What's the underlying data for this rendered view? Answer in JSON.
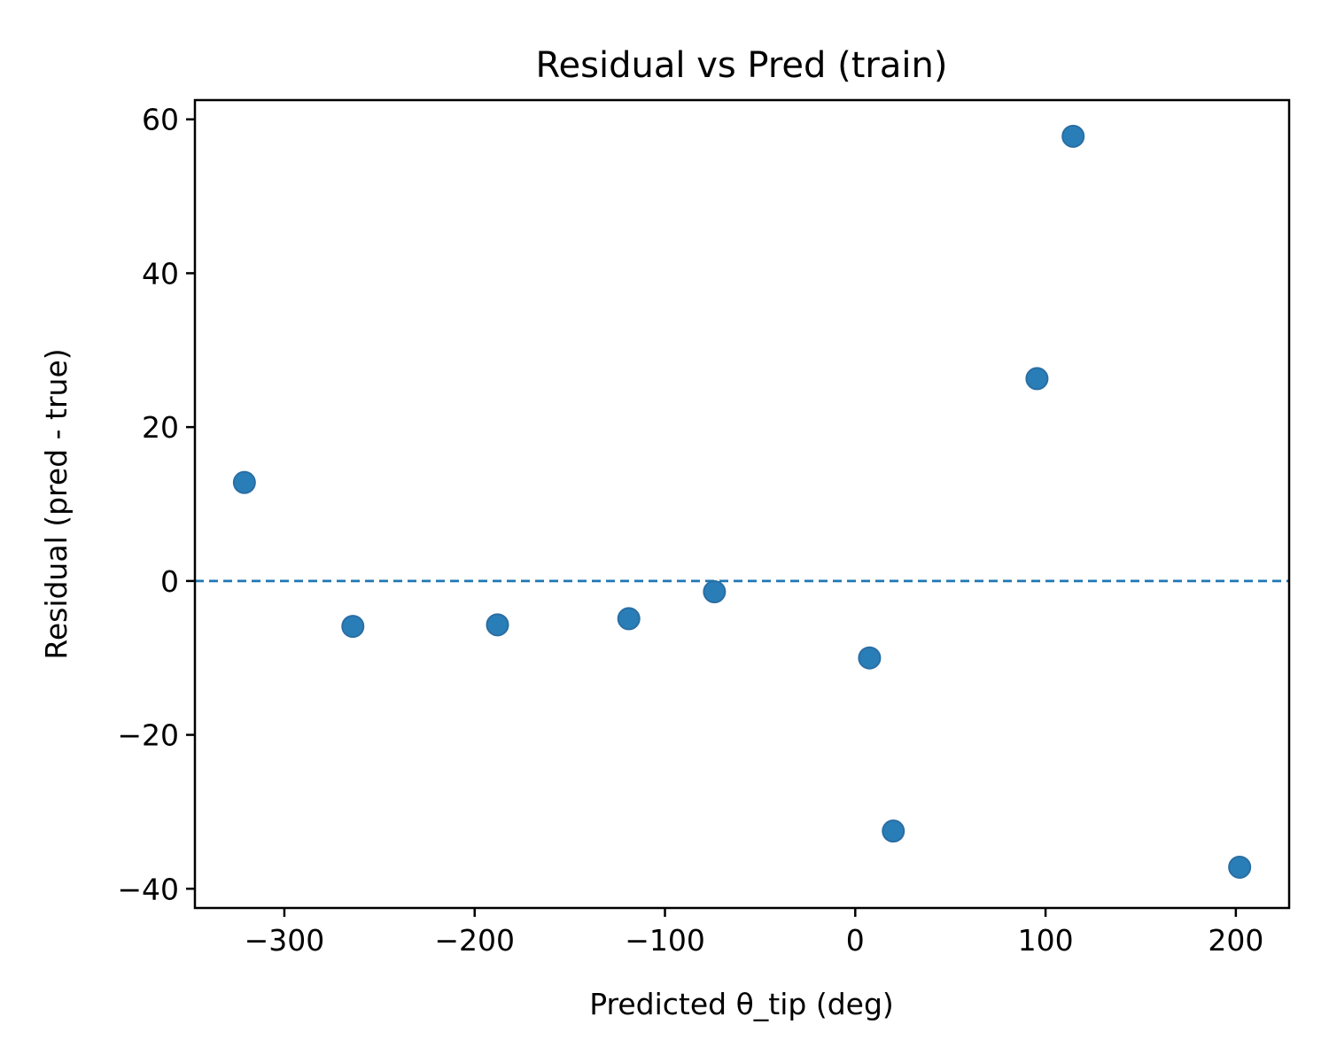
{
  "chart_data": {
    "type": "scatter",
    "title": "Residual vs Pred (train)",
    "xlabel": "Predicted θ_tip (deg)",
    "ylabel": "Residual (pred - true)",
    "xlim": [
      -347,
      228
    ],
    "ylim": [
      -42.5,
      62.5
    ],
    "xticks": [
      -300,
      -200,
      -100,
      0,
      100,
      200
    ],
    "xtick_labels": [
      "−300",
      "−200",
      "−100",
      "0",
      "100",
      "200"
    ],
    "yticks": [
      -40,
      -20,
      0,
      20,
      40,
      60
    ],
    "ytick_labels": [
      "−40",
      "−20",
      "0",
      "20",
      "40",
      "60"
    ],
    "grid": false,
    "reference_line": {
      "y": 0,
      "style": "dashed"
    },
    "point_color": "#1f77b4",
    "points": [
      {
        "x": -321,
        "y": 12.8
      },
      {
        "x": -264,
        "y": -5.9
      },
      {
        "x": -188,
        "y": -5.7
      },
      {
        "x": -119,
        "y": -4.9
      },
      {
        "x": -74,
        "y": -1.4
      },
      {
        "x": 7.5,
        "y": -10.0
      },
      {
        "x": 20,
        "y": -32.5
      },
      {
        "x": 95.5,
        "y": 26.3
      },
      {
        "x": 114.5,
        "y": 57.8
      },
      {
        "x": 202,
        "y": -37.2
      }
    ]
  }
}
